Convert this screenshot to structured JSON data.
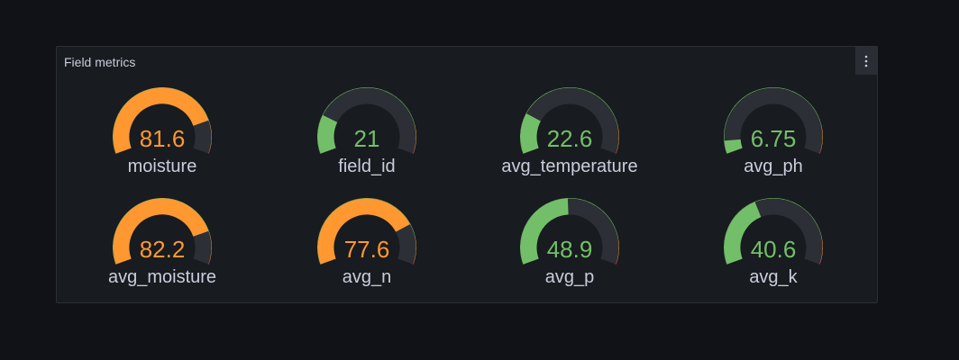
{
  "panel": {
    "title": "Field metrics",
    "menu_icon": "kebab-menu-icon"
  },
  "colors": {
    "green": "#73bf69",
    "orange": "#ff9830",
    "red": "#f2495c",
    "track": "#2c2f35",
    "text": "#ccccdc"
  },
  "gauges": [
    {
      "label": "moisture",
      "value": "81.6",
      "fill_percent": 82,
      "color": "orange"
    },
    {
      "label": "field_id",
      "value": "21",
      "fill_percent": 21,
      "color": "green"
    },
    {
      "label": "avg_temperature",
      "value": "22.6",
      "fill_percent": 22,
      "color": "green"
    },
    {
      "label": "avg_ph",
      "value": "6.75",
      "fill_percent": 7,
      "color": "green"
    },
    {
      "label": "avg_moisture",
      "value": "82.2",
      "fill_percent": 82,
      "color": "orange"
    },
    {
      "label": "avg_n",
      "value": "77.6",
      "fill_percent": 78,
      "color": "orange"
    },
    {
      "label": "avg_p",
      "value": "48.9",
      "fill_percent": 49,
      "color": "green"
    },
    {
      "label": "avg_k",
      "value": "40.6",
      "fill_percent": 40,
      "color": "green"
    }
  ]
}
